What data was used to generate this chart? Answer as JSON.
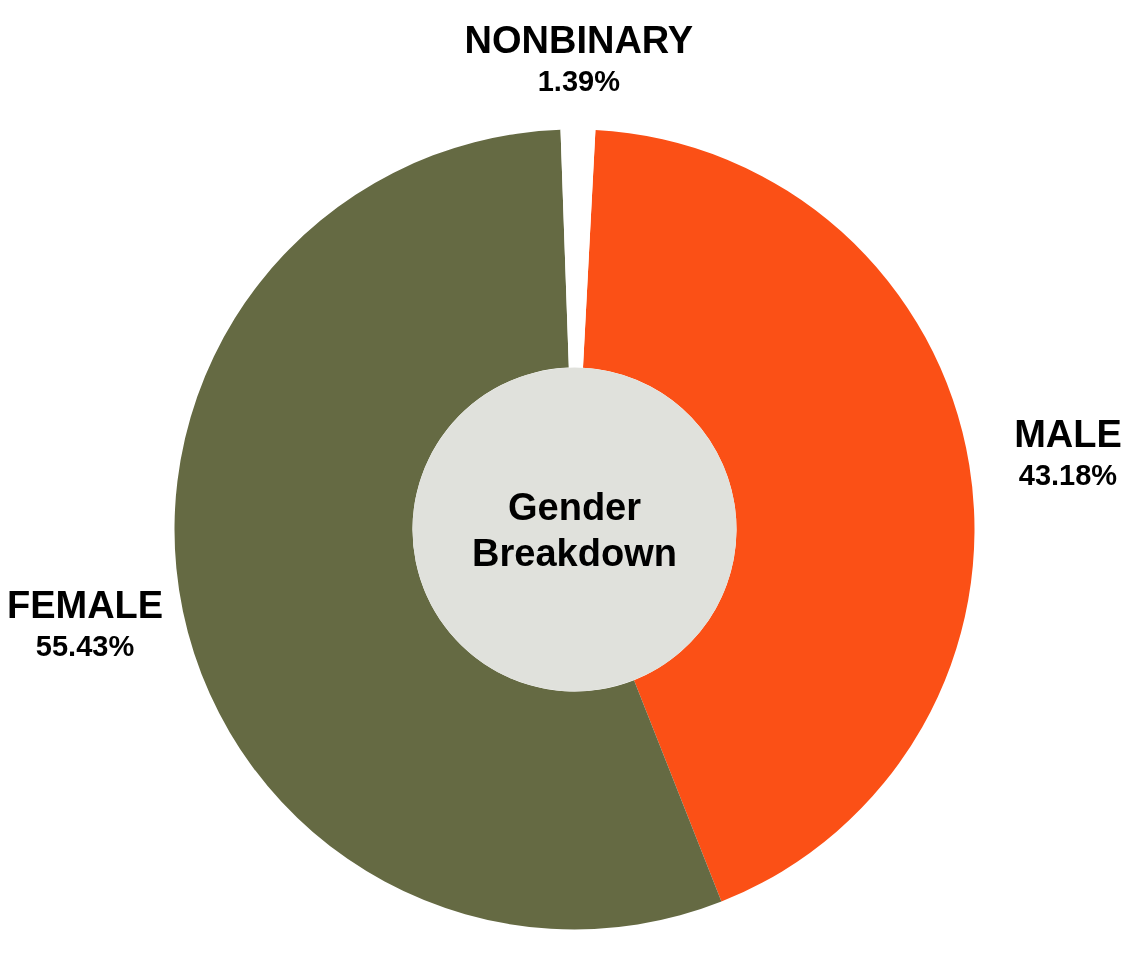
{
  "chart_data": {
    "type": "donut",
    "title": "Gender Breakdown",
    "categories": [
      "MALE",
      "FEMALE",
      "NONBINARY"
    ],
    "values": [
      43.18,
      55.43,
      1.39
    ],
    "colors": [
      "#fb5016",
      "#656a43",
      "#ffffff"
    ],
    "value_labels": [
      "43.18%",
      "55.43%",
      "1.39%"
    ]
  }
}
